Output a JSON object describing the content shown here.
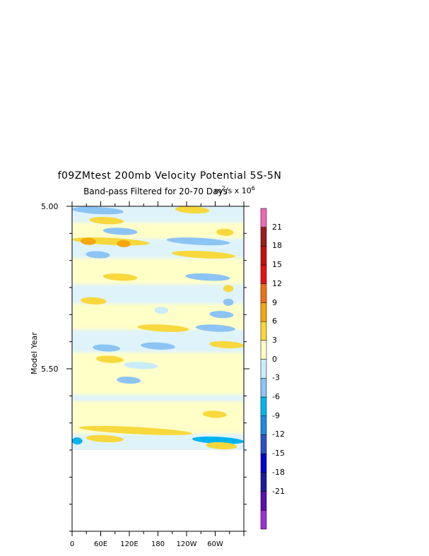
{
  "chart_data": {
    "type": "heatmap",
    "title": "f09ZMtest 200mb Velocity Potential 5S-5N",
    "subtitle": "Band-pass Filtered for 20-70 Days",
    "units": {
      "base": "m",
      "exp1": "2",
      "mid": "/s x 10",
      "exp2": "6"
    },
    "xlabel": "",
    "ylabel": "Model Year",
    "x_ticks": [
      "0",
      "60E",
      "120E",
      "180",
      "120W",
      "60W"
    ],
    "y_ticks": [
      "5.00",
      "5.50"
    ],
    "ylim": [
      5.0,
      6.0
    ],
    "data_ylim": [
      5.0,
      5.75
    ],
    "colorbar": {
      "labels": [
        "21",
        "18",
        "15",
        "12",
        "9",
        "6",
        "3",
        "0",
        "-3",
        "-6",
        "-9",
        "-12",
        "-15",
        "-18",
        "-21"
      ],
      "colors": [
        "#9b30d9",
        "#5a0fb0",
        "#1c1c9c",
        "#0000d0",
        "#2a52c8",
        "#1e8ae6",
        "#00b4f0",
        "#8cc4f4",
        "#c8ecfa",
        "#ffffc8",
        "#f8d83c",
        "#f5a70c",
        "#f07010",
        "#e81010",
        "#c81010",
        "#9b1c1c",
        "#f068b4"
      ]
    },
    "bands": [
      {
        "y": 5.013,
        "x0": 0.0,
        "x1": 0.3,
        "level": "-3"
      },
      {
        "y": 5.011,
        "x0": 0.6,
        "x1": 0.8,
        "level": "3"
      },
      {
        "y": 5.044,
        "x0": 0.1,
        "x1": 0.3,
        "level": "3"
      },
      {
        "y": 5.077,
        "x0": 0.18,
        "x1": 0.38,
        "level": "-3"
      },
      {
        "y": 5.08,
        "x0": 0.84,
        "x1": 0.94,
        "level": "3"
      },
      {
        "y": 5.108,
        "x0": 0.0,
        "x1": 0.45,
        "level": "3"
      },
      {
        "y": 5.115,
        "x0": 0.26,
        "x1": 0.34,
        "level": "6"
      },
      {
        "y": 5.108,
        "x0": 0.05,
        "x1": 0.14,
        "level": "6"
      },
      {
        "y": 5.108,
        "x0": 0.55,
        "x1": 0.92,
        "level": "-3"
      },
      {
        "y": 5.149,
        "x0": 0.08,
        "x1": 0.22,
        "level": "-3"
      },
      {
        "y": 5.149,
        "x0": 0.58,
        "x1": 0.95,
        "level": "3"
      },
      {
        "y": 5.218,
        "x0": 0.18,
        "x1": 0.38,
        "level": "3"
      },
      {
        "y": 5.218,
        "x0": 0.66,
        "x1": 0.92,
        "level": "-3"
      },
      {
        "y": 5.253,
        "x0": 0.88,
        "x1": 0.94,
        "level": "3"
      },
      {
        "y": 5.291,
        "x0": 0.05,
        "x1": 0.2,
        "level": "3"
      },
      {
        "y": 5.295,
        "x0": 0.88,
        "x1": 0.94,
        "level": "-3"
      },
      {
        "y": 5.32,
        "x0": 0.48,
        "x1": 0.56,
        "level": "0"
      },
      {
        "y": 5.333,
        "x0": 0.8,
        "x1": 0.94,
        "level": "-3"
      },
      {
        "y": 5.375,
        "x0": 0.38,
        "x1": 0.68,
        "level": "3"
      },
      {
        "y": 5.375,
        "x0": 0.72,
        "x1": 0.95,
        "level": "-3"
      },
      {
        "y": 5.426,
        "x0": 0.8,
        "x1": 1.0,
        "level": "3"
      },
      {
        "y": 5.43,
        "x0": 0.4,
        "x1": 0.6,
        "level": "-3"
      },
      {
        "y": 5.436,
        "x0": 0.12,
        "x1": 0.28,
        "level": "-3"
      },
      {
        "y": 5.471,
        "x0": 0.14,
        "x1": 0.3,
        "level": "3"
      },
      {
        "y": 5.49,
        "x0": 0.3,
        "x1": 0.5,
        "level": "0"
      },
      {
        "y": 5.535,
        "x0": 0.26,
        "x1": 0.4,
        "level": "-3"
      },
      {
        "y": 5.64,
        "x0": 0.76,
        "x1": 0.9,
        "level": "3"
      },
      {
        "y": 5.69,
        "x0": 0.04,
        "x1": 0.7,
        "level": "3"
      },
      {
        "y": 5.715,
        "x0": 0.08,
        "x1": 0.3,
        "level": "3"
      },
      {
        "y": 5.72,
        "x0": 0.7,
        "x1": 1.0,
        "level": "-6"
      },
      {
        "y": 5.722,
        "x0": 0.0,
        "x1": 0.06,
        "level": "-6"
      },
      {
        "y": 5.725,
        "x0": 0.78,
        "x1": 0.95,
        "level": "-6"
      },
      {
        "y": 5.737,
        "x0": 0.78,
        "x1": 0.96,
        "level": "3"
      }
    ]
  }
}
